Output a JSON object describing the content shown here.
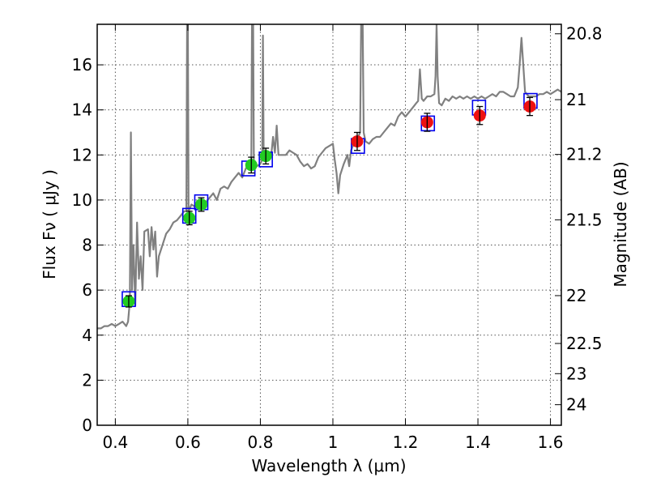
{
  "chart_data": {
    "type": "scatter",
    "xlabel": "Wavelength  λ (μm)",
    "ylabel": "Flux  Fν  ( μJy )",
    "y2label": "Magnitude (AB)",
    "xlim": [
      0.35,
      1.63
    ],
    "ylim": [
      0,
      17.8
    ],
    "grid": true,
    "x_ticks": [
      {
        "value": 0.4,
        "label": "0.4"
      },
      {
        "value": 0.6,
        "label": "0.6"
      },
      {
        "value": 0.8,
        "label": "0.8"
      },
      {
        "value": 1.0,
        "label": "1"
      },
      {
        "value": 1.2,
        "label": "1.2"
      },
      {
        "value": 1.4,
        "label": "1.4"
      },
      {
        "value": 1.6,
        "label": "1.6"
      }
    ],
    "y_ticks": [
      {
        "value": 0,
        "label": "0"
      },
      {
        "value": 2,
        "label": "2"
      },
      {
        "value": 4,
        "label": "4"
      },
      {
        "value": 6,
        "label": "6"
      },
      {
        "value": 8,
        "label": "8"
      },
      {
        "value": 10,
        "label": "10"
      },
      {
        "value": 12,
        "label": "12"
      },
      {
        "value": 14,
        "label": "14"
      },
      {
        "value": 16,
        "label": "16"
      }
    ],
    "y2_ticks": [
      {
        "value": 20.8,
        "label": "20.8"
      },
      {
        "value": 21,
        "label": "21"
      },
      {
        "value": 21.2,
        "label": "21.2"
      },
      {
        "value": 21.5,
        "label": "21.5"
      },
      {
        "value": 22,
        "label": "22"
      },
      {
        "value": 22.5,
        "label": "22.5"
      },
      {
        "value": 23,
        "label": "23"
      },
      {
        "value": 24,
        "label": "24"
      }
    ],
    "model_spectrum": {
      "color": "#808080",
      "points": [
        [
          0.35,
          4.3
        ],
        [
          0.36,
          4.3
        ],
        [
          0.37,
          4.4
        ],
        [
          0.38,
          4.4
        ],
        [
          0.39,
          4.5
        ],
        [
          0.4,
          4.4
        ],
        [
          0.41,
          4.5
        ],
        [
          0.42,
          4.6
        ],
        [
          0.43,
          4.4
        ],
        [
          0.435,
          4.6
        ],
        [
          0.44,
          5.5
        ],
        [
          0.443,
          13.0
        ],
        [
          0.446,
          6.0
        ],
        [
          0.45,
          8.0
        ],
        [
          0.455,
          5.3
        ],
        [
          0.46,
          9.0
        ],
        [
          0.465,
          6.5
        ],
        [
          0.47,
          7.5
        ],
        [
          0.475,
          6.0
        ],
        [
          0.48,
          8.6
        ],
        [
          0.49,
          8.7
        ],
        [
          0.495,
          7.5
        ],
        [
          0.5,
          8.8
        ],
        [
          0.505,
          7.8
        ],
        [
          0.51,
          8.6
        ],
        [
          0.515,
          6.6
        ],
        [
          0.52,
          7.5
        ],
        [
          0.53,
          8.0
        ],
        [
          0.54,
          8.5
        ],
        [
          0.55,
          8.7
        ],
        [
          0.56,
          9.0
        ],
        [
          0.57,
          9.1
        ],
        [
          0.58,
          9.3
        ],
        [
          0.59,
          9.5
        ],
        [
          0.596,
          9.5
        ],
        [
          0.598,
          18.0
        ],
        [
          0.6,
          18.0
        ],
        [
          0.602,
          9.5
        ],
        [
          0.61,
          9.8
        ],
        [
          0.62,
          9.7
        ],
        [
          0.63,
          10.0
        ],
        [
          0.64,
          9.8
        ],
        [
          0.65,
          9.9
        ],
        [
          0.66,
          10.1
        ],
        [
          0.67,
          10.3
        ],
        [
          0.68,
          10.0
        ],
        [
          0.69,
          10.5
        ],
        [
          0.7,
          10.6
        ],
        [
          0.71,
          10.5
        ],
        [
          0.72,
          10.8
        ],
        [
          0.73,
          11.0
        ],
        [
          0.74,
          11.2
        ],
        [
          0.75,
          11.0
        ],
        [
          0.76,
          11.4
        ],
        [
          0.77,
          11.6
        ],
        [
          0.775,
          11.8
        ],
        [
          0.777,
          18.0
        ],
        [
          0.78,
          18.0
        ],
        [
          0.782,
          11.7
        ],
        [
          0.79,
          11.5
        ],
        [
          0.8,
          11.6
        ],
        [
          0.805,
          11.8
        ],
        [
          0.807,
          17.3
        ],
        [
          0.809,
          12.0
        ],
        [
          0.815,
          11.9
        ],
        [
          0.82,
          11.9
        ],
        [
          0.83,
          12.0
        ],
        [
          0.835,
          12.8
        ],
        [
          0.84,
          12.1
        ],
        [
          0.845,
          13.3
        ],
        [
          0.85,
          12.0
        ],
        [
          0.86,
          12.0
        ],
        [
          0.87,
          12.0
        ],
        [
          0.88,
          12.2
        ],
        [
          0.89,
          12.1
        ],
        [
          0.9,
          12.0
        ],
        [
          0.91,
          11.7
        ],
        [
          0.92,
          11.5
        ],
        [
          0.93,
          11.6
        ],
        [
          0.94,
          11.4
        ],
        [
          0.95,
          11.5
        ],
        [
          0.96,
          11.9
        ],
        [
          0.97,
          12.1
        ],
        [
          0.98,
          12.3
        ],
        [
          0.99,
          12.4
        ],
        [
          1.0,
          12.5
        ],
        [
          1.005,
          11.8
        ],
        [
          1.01,
          11.2
        ],
        [
          1.015,
          10.3
        ],
        [
          1.02,
          11.1
        ],
        [
          1.03,
          11.6
        ],
        [
          1.04,
          12.0
        ],
        [
          1.045,
          11.5
        ],
        [
          1.05,
          12.2
        ],
        [
          1.06,
          12.6
        ],
        [
          1.07,
          12.8
        ],
        [
          1.075,
          13.0
        ],
        [
          1.078,
          18.0
        ],
        [
          1.082,
          18.0
        ],
        [
          1.085,
          13.0
        ],
        [
          1.09,
          12.6
        ],
        [
          1.1,
          12.5
        ],
        [
          1.11,
          12.7
        ],
        [
          1.12,
          12.8
        ],
        [
          1.13,
          12.8
        ],
        [
          1.14,
          13.0
        ],
        [
          1.15,
          13.2
        ],
        [
          1.16,
          13.4
        ],
        [
          1.17,
          13.3
        ],
        [
          1.18,
          13.7
        ],
        [
          1.19,
          13.9
        ],
        [
          1.2,
          13.7
        ],
        [
          1.21,
          13.9
        ],
        [
          1.22,
          14.1
        ],
        [
          1.23,
          14.3
        ],
        [
          1.235,
          14.4
        ],
        [
          1.24,
          15.8
        ],
        [
          1.245,
          14.5
        ],
        [
          1.25,
          14.4
        ],
        [
          1.26,
          14.6
        ],
        [
          1.27,
          14.6
        ],
        [
          1.28,
          14.7
        ],
        [
          1.283,
          15.5
        ],
        [
          1.286,
          17.8
        ],
        [
          1.289,
          15.5
        ],
        [
          1.293,
          14.3
        ],
        [
          1.3,
          14.2
        ],
        [
          1.31,
          14.5
        ],
        [
          1.32,
          14.4
        ],
        [
          1.33,
          14.6
        ],
        [
          1.34,
          14.5
        ],
        [
          1.35,
          14.6
        ],
        [
          1.36,
          14.5
        ],
        [
          1.37,
          14.6
        ],
        [
          1.38,
          14.5
        ],
        [
          1.39,
          14.6
        ],
        [
          1.4,
          14.5
        ],
        [
          1.41,
          14.6
        ],
        [
          1.42,
          14.5
        ],
        [
          1.43,
          14.6
        ],
        [
          1.44,
          14.7
        ],
        [
          1.45,
          14.6
        ],
        [
          1.46,
          14.8
        ],
        [
          1.47,
          14.8
        ],
        [
          1.48,
          14.7
        ],
        [
          1.49,
          14.6
        ],
        [
          1.5,
          14.6
        ],
        [
          1.51,
          15.0
        ],
        [
          1.515,
          16.0
        ],
        [
          1.52,
          17.2
        ],
        [
          1.525,
          16.0
        ],
        [
          1.53,
          14.8
        ],
        [
          1.54,
          14.6
        ],
        [
          1.55,
          14.6
        ],
        [
          1.56,
          14.6
        ],
        [
          1.57,
          14.7
        ],
        [
          1.58,
          14.7
        ],
        [
          1.59,
          14.8
        ],
        [
          1.6,
          14.7
        ],
        [
          1.61,
          14.8
        ],
        [
          1.62,
          14.9
        ],
        [
          1.63,
          14.8
        ]
      ]
    },
    "model_fluxes": {
      "color": "#0000ee",
      "points": [
        [
          0.437,
          5.6
        ],
        [
          0.604,
          9.3
        ],
        [
          0.637,
          9.9
        ],
        [
          0.767,
          11.4
        ],
        [
          0.815,
          11.8
        ],
        [
          1.069,
          12.4
        ],
        [
          1.262,
          13.4
        ],
        [
          1.403,
          14.1
        ],
        [
          1.545,
          14.4
        ]
      ]
    },
    "observed_optical": {
      "color": "#22cc22",
      "points": [
        {
          "x": 0.437,
          "y": 5.5,
          "err": 0.25
        },
        {
          "x": 0.604,
          "y": 9.2,
          "err": 0.3
        },
        {
          "x": 0.637,
          "y": 9.8,
          "err": 0.3
        },
        {
          "x": 0.775,
          "y": 11.55,
          "err": 0.35
        },
        {
          "x": 0.815,
          "y": 11.95,
          "err": 0.35
        }
      ]
    },
    "observed_nir": {
      "color": "#ee1111",
      "points": [
        {
          "x": 1.067,
          "y": 12.6,
          "err": 0.4
        },
        {
          "x": 1.26,
          "y": 13.45,
          "err": 0.4
        },
        {
          "x": 1.405,
          "y": 13.75,
          "err": 0.4
        },
        {
          "x": 1.543,
          "y": 14.15,
          "err": 0.4
        }
      ]
    }
  }
}
